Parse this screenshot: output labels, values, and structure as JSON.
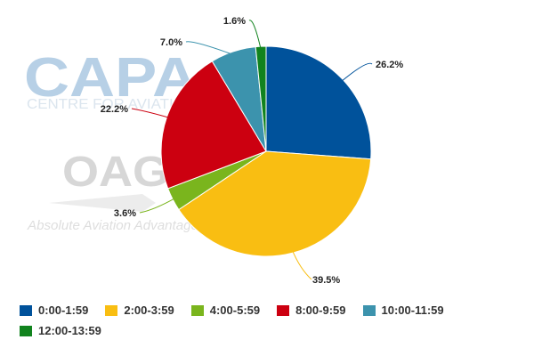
{
  "watermarks": {
    "capa_logo": "CAPA",
    "capa_tagline": "CENTRE FOR AVIATION",
    "oag_logo": "OAG",
    "oag_tagline": "Absolute Aviation Advantage"
  },
  "chart_data": {
    "type": "pie",
    "start_angle_deg": 0,
    "direction": "clockwise",
    "legend_position": "bottom",
    "slices": [
      {
        "label": "0:00-1:59",
        "value": 26.2,
        "display": "26.2%",
        "color": "#00529b"
      },
      {
        "label": "2:00-3:59",
        "value": 39.5,
        "display": "39.5%",
        "color": "#f9be12"
      },
      {
        "label": "4:00-5:59",
        "value": 3.6,
        "display": "3.6%",
        "color": "#7ab51d"
      },
      {
        "label": "8:00-9:59",
        "value": 22.2,
        "display": "22.2%",
        "color": "#cc0010"
      },
      {
        "label": "10:00-11:59",
        "value": 7.0,
        "display": "7.0%",
        "color": "#3c93ad"
      },
      {
        "label": "12:00-13:59",
        "value": 1.6,
        "display": "1.6%",
        "color": "#11831e"
      }
    ]
  }
}
